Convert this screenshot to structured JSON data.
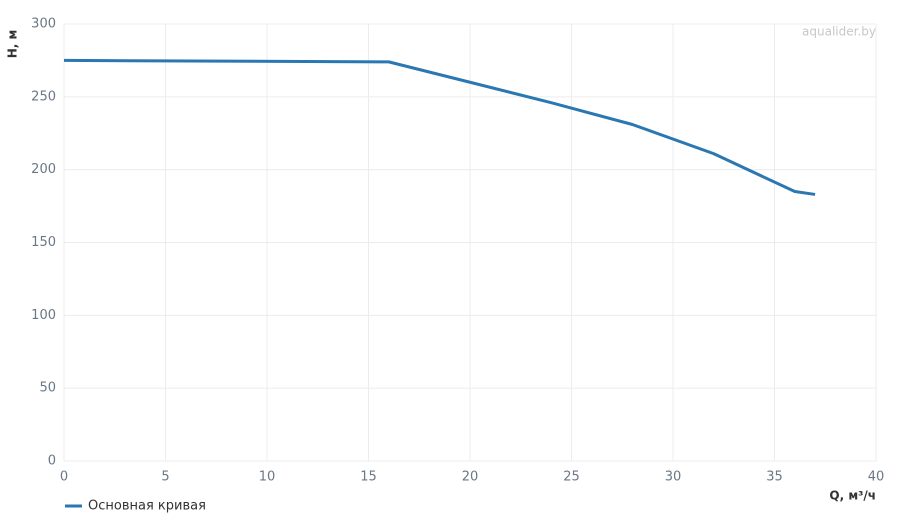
{
  "chart_data": {
    "type": "line",
    "watermark": "aqualider.by",
    "x_label": "Q, м³/ч",
    "y_label": "H, м",
    "x": [
      0,
      16,
      20,
      24,
      28,
      32,
      36,
      37
    ],
    "series": [
      {
        "name": "Основная кривая",
        "color": "#2a77b2",
        "values": [
          275,
          274,
          260,
          246,
          231,
          211,
          185,
          183
        ]
      }
    ],
    "xlim": [
      0,
      40
    ],
    "xticks": [
      0,
      5,
      10,
      15,
      20,
      25,
      30,
      35,
      40
    ],
    "ylim": [
      0,
      300
    ],
    "yticks": [
      0,
      50,
      100,
      150,
      200,
      250,
      300
    ],
    "grid": true,
    "legend": "bottom-left"
  }
}
